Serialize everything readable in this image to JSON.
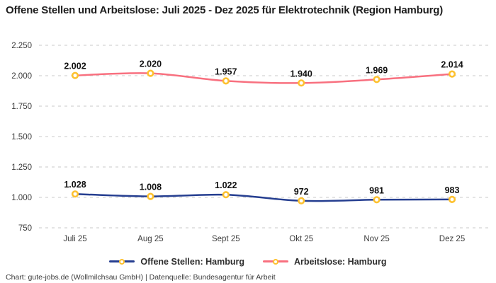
{
  "title": "Offene Stellen und Arbeitslose: Juli 2025 - Dez 2025 für Elektrotechnik (Region Hamburg)",
  "footer": "Chart: gute-jobs.de (Wollmilchsau GmbH) | Datenquelle: Bundesagentur für Arbeit",
  "chart_data": {
    "type": "line",
    "title": "Offene Stellen und Arbeitslose: Juli 2025 - Dez 2025 für Elektrotechnik (Region Hamburg)",
    "categories": [
      "Juli 25",
      "Aug 25",
      "Sept 25",
      "Okt 25",
      "Nov 25",
      "Dez 25"
    ],
    "series": [
      {
        "name": "Offene Stellen: Hamburg",
        "values": [
          1028,
          1008,
          1022,
          972,
          981,
          983
        ],
        "labels": [
          "1.028",
          "1.008",
          "1.022",
          "972",
          "981",
          "983"
        ],
        "color": "#253E90"
      },
      {
        "name": "Arbeitslose: Hamburg",
        "values": [
          2002,
          2020,
          1957,
          1940,
          1969,
          2014
        ],
        "labels": [
          "2.002",
          "2.020",
          "1.957",
          "1.940",
          "1.969",
          "2.014"
        ],
        "color": "#F8707F"
      }
    ],
    "marker_color": "#FDC12F",
    "marker_fill": "#ffffff",
    "grid": true,
    "grid_color": "#CACACA",
    "smooth": true,
    "legend_position": "bottom",
    "xlabel": "",
    "ylabel": "",
    "ylim": [
      750,
      2250
    ],
    "yticks": [
      {
        "value": 750,
        "label": "750"
      },
      {
        "value": 1000,
        "label": "1.000"
      },
      {
        "value": 1250,
        "label": "1.250"
      },
      {
        "value": 1500,
        "label": "1.500"
      },
      {
        "value": 1750,
        "label": "1.750"
      },
      {
        "value": 2000,
        "label": "2.000"
      },
      {
        "value": 2250,
        "label": "2.250"
      }
    ]
  }
}
